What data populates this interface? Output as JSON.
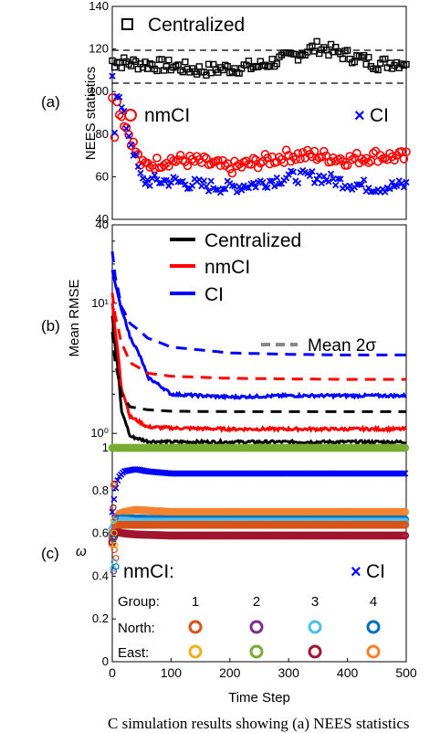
{
  "caption": "C simulation results showing (a) NEES statistics",
  "chart_data": [
    {
      "panel": "(a)",
      "type": "scatter",
      "ylabel": "NEES statistics",
      "xlim": [
        0,
        500
      ],
      "ylim": [
        40,
        140
      ],
      "yticks": [
        "40",
        "60",
        "80",
        "100",
        "120",
        "140"
      ],
      "bounds": [
        104,
        120
      ],
      "legend": [
        "Centralized",
        "nmCI",
        "CI"
      ],
      "series": [
        {
          "name": "Centralized",
          "marker": "square",
          "color": "#000000",
          "start": 112,
          "level": 112,
          "x": [
            0,
            50,
            100,
            150,
            200,
            250,
            300,
            350,
            400,
            450,
            500
          ],
          "y": [
            114,
            113,
            112,
            110,
            111,
            112,
            116,
            121,
            117,
            113,
            114
          ]
        },
        {
          "name": "nmCI",
          "marker": "circle",
          "color": "#ff0000",
          "start": 100,
          "level": 64,
          "x": [
            0,
            50,
            100,
            150,
            200,
            250,
            300,
            350,
            400,
            450,
            500
          ],
          "y": [
            100,
            65,
            68,
            67,
            64,
            67,
            70,
            70,
            68,
            70,
            69
          ]
        },
        {
          "name": "CI",
          "marker": "x",
          "color": "#0000ff",
          "start": 108,
          "level": 56,
          "x": [
            0,
            50,
            100,
            150,
            200,
            250,
            300,
            350,
            400,
            450,
            500
          ],
          "y": [
            108,
            58,
            58,
            56,
            55,
            57,
            60,
            60,
            57,
            55,
            56
          ]
        }
      ]
    },
    {
      "panel": "(b)",
      "type": "line",
      "ylabel": "Mean RMSE",
      "yscale": "log",
      "xlim": [
        0,
        500
      ],
      "ylim": [
        0.8,
        40
      ],
      "yticks": [
        "10⁰",
        "10¹",
        "40"
      ],
      "legend": [
        "Centralized",
        "nmCI",
        "CI"
      ],
      "legend2": "Mean 2σ",
      "series": [
        {
          "name": "Centralized",
          "color": "#000000",
          "x": [
            0,
            5,
            15,
            30,
            60,
            100,
            200,
            300,
            400,
            500
          ],
          "y": [
            8,
            4.5,
            1.5,
            0.95,
            0.87,
            0.86,
            0.86,
            0.86,
            0.86,
            0.86
          ]
        },
        {
          "name": "nmCI",
          "color": "#ff0000",
          "x": [
            0,
            5,
            15,
            30,
            60,
            100,
            200,
            300,
            400,
            500
          ],
          "y": [
            10,
            6,
            2.2,
            1.35,
            1.12,
            1.1,
            1.08,
            1.08,
            1.08,
            1.08
          ]
        },
        {
          "name": "CI",
          "color": "#0000ff",
          "x": [
            0,
            5,
            15,
            30,
            60,
            100,
            200,
            300,
            400,
            500
          ],
          "y": [
            18,
            14,
            9,
            5.5,
            2.7,
            2.0,
            1.9,
            1.95,
            1.95,
            1.95
          ]
        },
        {
          "name": "Centralized 2σ",
          "color": "#000000",
          "dashed": true,
          "x": [
            0,
            5,
            15,
            30,
            60,
            100,
            200,
            300,
            400,
            500
          ],
          "y": [
            6,
            3.5,
            2.0,
            1.6,
            1.52,
            1.48,
            1.47,
            1.47,
            1.47,
            1.47
          ]
        },
        {
          "name": "nmCI 2σ",
          "color": "#ff0000",
          "dashed": true,
          "x": [
            0,
            5,
            15,
            30,
            60,
            100,
            200,
            300,
            400,
            500
          ],
          "y": [
            12,
            8,
            5,
            3.5,
            2.9,
            2.75,
            2.65,
            2.62,
            2.6,
            2.6
          ]
        },
        {
          "name": "CI 2σ",
          "color": "#0000ff",
          "dashed": true,
          "x": [
            0,
            5,
            15,
            30,
            60,
            100,
            200,
            300,
            400,
            500
          ],
          "y": [
            25,
            16,
            9.5,
            7,
            5.4,
            4.6,
            4.15,
            4.05,
            4.0,
            4.0
          ]
        }
      ]
    },
    {
      "panel": "(c)",
      "type": "scatter",
      "ylabel": "ω",
      "xlabel": "Time Step",
      "xlim": [
        0,
        500
      ],
      "ylim": [
        0,
        1
      ],
      "yticks": [
        "0",
        "0.2",
        "0.4",
        "0.6",
        "0.8",
        "1"
      ],
      "xticks": [
        "0",
        "100",
        "200",
        "300",
        "400",
        "500"
      ],
      "legend_left": "nmCI:",
      "legend_right": "CI",
      "table_header": "Group:",
      "groups": [
        "1",
        "2",
        "3",
        "4"
      ],
      "rows": [
        {
          "label": "North:",
          "colors": [
            "#d95319",
            "#7e2f8e",
            "#4dbeee",
            "#0072bd"
          ]
        },
        {
          "label": "East:",
          "colors": [
            "#edb120",
            "#77ac30",
            "#a2142f",
            "#f58231"
          ]
        }
      ],
      "series": [
        {
          "name": "CI",
          "marker": "x",
          "color": "#0000ff",
          "x": [
            0,
            5,
            10,
            20,
            40,
            60,
            100,
            500
          ],
          "y": [
            0.7,
            0.8,
            0.86,
            0.89,
            0.9,
            0.89,
            0.88,
            0.88
          ]
        },
        {
          "name": "1.0 level",
          "marker": "circle",
          "color": "#77ac30",
          "x": [
            0,
            500
          ],
          "y": [
            1.0,
            1.0
          ]
        },
        {
          "name": "orange",
          "marker": "circle",
          "color": "#f58231",
          "x": [
            0,
            5,
            10,
            20,
            40,
            100,
            500
          ],
          "y": [
            0.55,
            0.65,
            0.69,
            0.7,
            0.71,
            0.7,
            0.7
          ]
        },
        {
          "name": "navy",
          "marker": "circle",
          "color": "#0072bd",
          "x": [
            0,
            5,
            10,
            20,
            40,
            100,
            500
          ],
          "y": [
            0.6,
            0.66,
            0.67,
            0.67,
            0.67,
            0.665,
            0.665
          ]
        },
        {
          "name": "lightblue",
          "marker": "circle",
          "color": "#4dbeee",
          "x": [
            0,
            5,
            10,
            20,
            40,
            100,
            500
          ],
          "y": [
            0.62,
            0.65,
            0.66,
            0.66,
            0.655,
            0.655,
            0.655
          ]
        },
        {
          "name": "red",
          "marker": "circle",
          "color": "#d95319",
          "x": [
            0,
            5,
            10,
            20,
            40,
            100,
            500
          ],
          "y": [
            0.58,
            0.63,
            0.64,
            0.64,
            0.64,
            0.64,
            0.64
          ]
        },
        {
          "name": "darkred",
          "marker": "circle",
          "color": "#a2142f",
          "x": [
            0,
            5,
            10,
            20,
            40,
            100,
            500
          ],
          "y": [
            0.56,
            0.6,
            0.605,
            0.6,
            0.595,
            0.59,
            0.59
          ]
        }
      ]
    }
  ]
}
